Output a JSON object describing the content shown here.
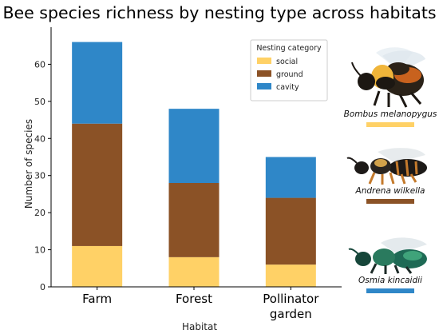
{
  "chart_data": {
    "type": "bar",
    "stacked": true,
    "title": "Bee species richness by nesting type across habitats",
    "xlabel": "Habitat",
    "ylabel": "Number of species",
    "ylim": [
      0,
      70
    ],
    "yticks": [
      0,
      10,
      20,
      30,
      40,
      50,
      60
    ],
    "grid": false,
    "categories": [
      [
        "Farm"
      ],
      [
        "Forest"
      ],
      [
        "Pollinator",
        "garden"
      ]
    ],
    "series": [
      {
        "name": "social",
        "color": "#ffd166",
        "values": [
          11,
          8,
          6
        ]
      },
      {
        "name": "ground",
        "color": "#8b5226",
        "values": [
          33,
          20,
          18
        ]
      },
      {
        "name": "cavity",
        "color": "#2f87c8",
        "values": [
          22,
          20,
          11
        ]
      }
    ],
    "legend": {
      "title": "Nesting category",
      "placement": "top-right"
    }
  },
  "bees": [
    {
      "name": "Bombus melanopygus",
      "icon": "bumblebee-icon",
      "color": "#ffd166"
    },
    {
      "name": "Andrena wilkella",
      "icon": "mining-bee-icon",
      "color": "#8b5226"
    },
    {
      "name": "Osmia kincaidii",
      "icon": "mason-bee-icon",
      "color": "#2f87c8"
    }
  ]
}
